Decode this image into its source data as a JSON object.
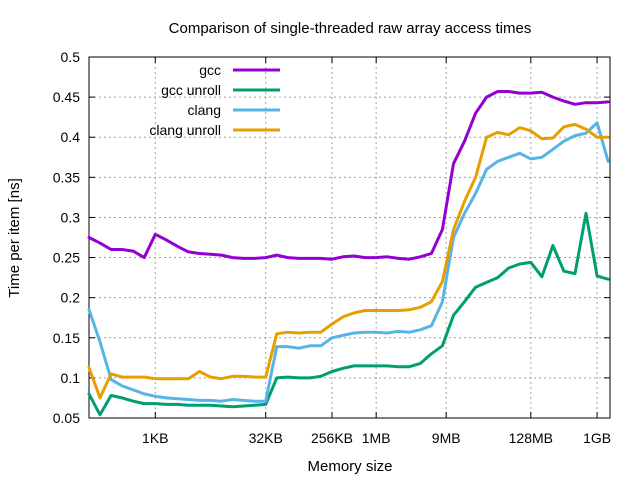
{
  "chart_data": {
    "type": "line",
    "title": "Comparison of single-threaded raw array access times",
    "xlabel": "Memory size",
    "ylabel": "Time per item [ns]",
    "x_scale": "log2",
    "x_unit": "bytes",
    "xlim": [
      128,
      1610612736
    ],
    "ylim": [
      0.05,
      0.5
    ],
    "grid": true,
    "legend_position": "top-left",
    "x_ticks": [
      {
        "value": 1024,
        "label": "1KB"
      },
      {
        "value": 32768,
        "label": "32KB"
      },
      {
        "value": 262144,
        "label": "256KB"
      },
      {
        "value": 1048576,
        "label": "1MB"
      },
      {
        "value": 9437184,
        "label": "9MB"
      },
      {
        "value": 134217728,
        "label": "128MB"
      },
      {
        "value": 1073741824,
        "label": "1GB"
      }
    ],
    "y_ticks": [
      {
        "value": 0.05,
        "label": "0.05"
      },
      {
        "value": 0.1,
        "label": "0.1"
      },
      {
        "value": 0.15,
        "label": "0.15"
      },
      {
        "value": 0.2,
        "label": "0.2"
      },
      {
        "value": 0.25,
        "label": "0.25"
      },
      {
        "value": 0.3,
        "label": "0.3"
      },
      {
        "value": 0.35,
        "label": "0.35"
      },
      {
        "value": 0.4,
        "label": "0.4"
      },
      {
        "value": 0.45,
        "label": "0.45"
      },
      {
        "value": 0.5,
        "label": "0.5"
      }
    ],
    "x": [
      128,
      181,
      256,
      362,
      512,
      724,
      1024,
      1448,
      2048,
      2896,
      4096,
      5793,
      8192,
      11585,
      16384,
      23170,
      32768,
      46341,
      65536,
      92682,
      131072,
      185364,
      262144,
      370728,
      524288,
      741455,
      1048576,
      1482910,
      2097152,
      2965821,
      4194304,
      5931642,
      8388608,
      11863283,
      16777216,
      23726566,
      33554432,
      47453133,
      67108864,
      94906266,
      134217728,
      189812531,
      268435456,
      379625062,
      536870912,
      759250125,
      1073741824,
      1518500250
    ],
    "series": [
      {
        "name": "gcc",
        "color": "#9400d3",
        "values": [
          0.275,
          0.268,
          0.26,
          0.26,
          0.258,
          0.25,
          0.279,
          0.272,
          0.264,
          0.257,
          0.255,
          0.254,
          0.253,
          0.25,
          0.249,
          0.249,
          0.25,
          0.253,
          0.25,
          0.249,
          0.249,
          0.249,
          0.248,
          0.251,
          0.252,
          0.25,
          0.25,
          0.251,
          0.249,
          0.248,
          0.251,
          0.255,
          0.285,
          0.367,
          0.395,
          0.43,
          0.45,
          0.457,
          0.457,
          0.455,
          0.455,
          0.456,
          0.45,
          0.445,
          0.441,
          0.443,
          0.443,
          0.444
        ]
      },
      {
        "name": "gcc unroll",
        "color": "#009e73",
        "values": [
          0.08,
          0.054,
          0.078,
          0.075,
          0.071,
          0.068,
          0.068,
          0.067,
          0.067,
          0.066,
          0.066,
          0.066,
          0.065,
          0.064,
          0.065,
          0.066,
          0.067,
          0.1,
          0.101,
          0.1,
          0.1,
          0.102,
          0.108,
          0.112,
          0.115,
          0.115,
          0.115,
          0.115,
          0.114,
          0.114,
          0.118,
          0.13,
          0.14,
          0.178,
          0.195,
          0.213,
          0.219,
          0.225,
          0.237,
          0.242,
          0.244,
          0.226,
          0.265,
          0.233,
          0.23,
          0.305,
          0.227,
          0.223
        ]
      },
      {
        "name": "clang",
        "color": "#56b4e9",
        "values": [
          0.185,
          0.145,
          0.098,
          0.09,
          0.085,
          0.08,
          0.077,
          0.075,
          0.074,
          0.073,
          0.072,
          0.072,
          0.071,
          0.073,
          0.072,
          0.071,
          0.071,
          0.139,
          0.139,
          0.137,
          0.14,
          0.14,
          0.15,
          0.153,
          0.156,
          0.157,
          0.157,
          0.156,
          0.158,
          0.157,
          0.16,
          0.165,
          0.195,
          0.275,
          0.305,
          0.33,
          0.36,
          0.37,
          0.375,
          0.38,
          0.373,
          0.375,
          0.385,
          0.395,
          0.402,
          0.405,
          0.418,
          0.37
        ]
      },
      {
        "name": "clang unroll",
        "color": "#e69f00",
        "values": [
          0.113,
          0.075,
          0.105,
          0.101,
          0.101,
          0.101,
          0.099,
          0.099,
          0.099,
          0.099,
          0.108,
          0.101,
          0.099,
          0.102,
          0.102,
          0.101,
          0.101,
          0.155,
          0.157,
          0.156,
          0.157,
          0.157,
          0.167,
          0.176,
          0.181,
          0.184,
          0.184,
          0.184,
          0.184,
          0.185,
          0.188,
          0.195,
          0.22,
          0.285,
          0.32,
          0.35,
          0.4,
          0.406,
          0.403,
          0.412,
          0.408,
          0.398,
          0.399,
          0.413,
          0.416,
          0.41,
          0.4,
          0.4
        ]
      }
    ]
  }
}
